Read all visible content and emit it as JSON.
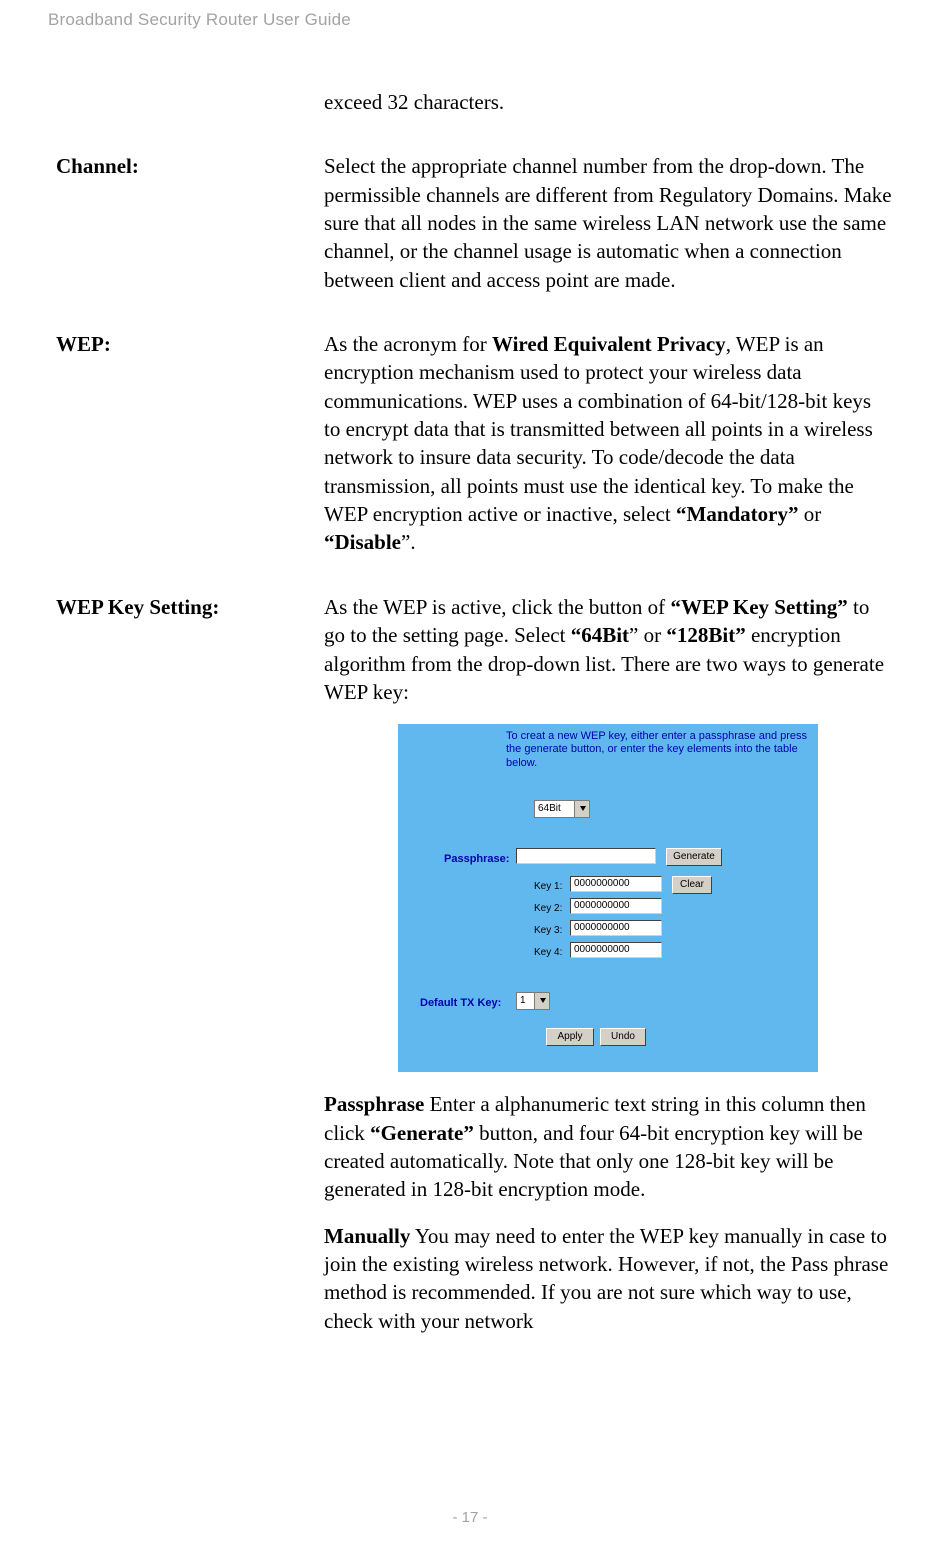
{
  "header": {
    "title": "Broadband Security Router User Guide"
  },
  "exceed": {
    "text": "exceed 32 characters."
  },
  "channel": {
    "label": "Channel:",
    "desc": "Select the appropriate channel number from the drop-down. The permissible channels are different from Regulatory Domains. Make sure that all nodes in the same wireless LAN network use the same channel, or the channel usage is automatic when a connection between client and access point are made."
  },
  "wep": {
    "label": "WEP:",
    "p1a": "As the acronym for ",
    "p1b": "Wired Equivalent Privacy",
    "p1c": ", WEP is an encryption mechanism used to protect your wireless data communications. WEP uses a combination of 64-bit/128-bit keys to encrypt data that is transmitted between all points in a wireless network to insure data security. To code/decode the data transmission, all points must use the identical key. To make the WEP encryption active or inactive, select ",
    "p1d": "“Mandatory”",
    "p1e": " or ",
    "p1f": "“Disable",
    "p1g": "”."
  },
  "wks": {
    "label": "WEP Key Setting:",
    "p1a": "As the WEP is active, click the button of ",
    "p1b": "“WEP Key Setting”",
    "p1c": " to go to the setting page. Select ",
    "p1d": "“64Bit",
    "p1e": "” or ",
    "p1f": "“128Bit”",
    "p1g": " encryption algorithm from the drop-down list. There are two ways to generate WEP key:",
    "p2a": "Passphrase",
    "p2b": " Enter a alphanumeric text string in this column then click ",
    "p2c": "“Generate”",
    "p2d": " button, and four 64-bit encryption key will be created automatically. Note that only one 128-bit key will be generated in 128-bit encryption mode.",
    "p3a": "Manually",
    "p3b": " You may need to enter the WEP key manually in case to join the existing wireless network. However, if not, the Pass phrase method is recommended. If you are not sure which way to use, check with your network"
  },
  "shot": {
    "info": "To creat a new WEP key, either enter a passphrase and press the generate button, or enter the key elements into the table below.",
    "bitsel": "64Bit",
    "passlbl": "Passphrase:",
    "txlbl": "Default TX Key:",
    "k1": "Key 1:",
    "k2": "Key 2:",
    "k3": "Key 3:",
    "k4": "Key 4:",
    "kv": "0000000000",
    "gen": "Generate",
    "clr": "Clear",
    "apply": "Apply",
    "undo": "Undo",
    "txval": "1"
  },
  "footer": {
    "page": "- 17 -"
  }
}
